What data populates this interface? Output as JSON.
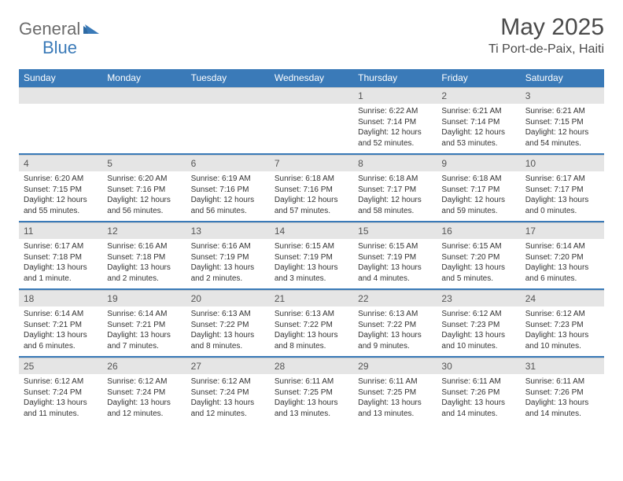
{
  "logo": {
    "text1": "General",
    "text2": "Blue"
  },
  "title": "May 2025",
  "location": "Ti Port-de-Paix, Haiti",
  "colors": {
    "header_bg": "#3a7ab8",
    "date_bg": "#e5e5e5",
    "rule": "#3a7ab8",
    "logo_gray": "#6b6b6b",
    "logo_blue": "#3a7ab8"
  },
  "dayNames": [
    "Sunday",
    "Monday",
    "Tuesday",
    "Wednesday",
    "Thursday",
    "Friday",
    "Saturday"
  ],
  "weeks": [
    {
      "dates": [
        "",
        "",
        "",
        "",
        "1",
        "2",
        "3"
      ],
      "cells": [
        null,
        null,
        null,
        null,
        {
          "sunrise": "Sunrise: 6:22 AM",
          "sunset": "Sunset: 7:14 PM",
          "daylight": "Daylight: 12 hours and 52 minutes."
        },
        {
          "sunrise": "Sunrise: 6:21 AM",
          "sunset": "Sunset: 7:14 PM",
          "daylight": "Daylight: 12 hours and 53 minutes."
        },
        {
          "sunrise": "Sunrise: 6:21 AM",
          "sunset": "Sunset: 7:15 PM",
          "daylight": "Daylight: 12 hours and 54 minutes."
        }
      ]
    },
    {
      "dates": [
        "4",
        "5",
        "6",
        "7",
        "8",
        "9",
        "10"
      ],
      "cells": [
        {
          "sunrise": "Sunrise: 6:20 AM",
          "sunset": "Sunset: 7:15 PM",
          "daylight": "Daylight: 12 hours and 55 minutes."
        },
        {
          "sunrise": "Sunrise: 6:20 AM",
          "sunset": "Sunset: 7:16 PM",
          "daylight": "Daylight: 12 hours and 56 minutes."
        },
        {
          "sunrise": "Sunrise: 6:19 AM",
          "sunset": "Sunset: 7:16 PM",
          "daylight": "Daylight: 12 hours and 56 minutes."
        },
        {
          "sunrise": "Sunrise: 6:18 AM",
          "sunset": "Sunset: 7:16 PM",
          "daylight": "Daylight: 12 hours and 57 minutes."
        },
        {
          "sunrise": "Sunrise: 6:18 AM",
          "sunset": "Sunset: 7:17 PM",
          "daylight": "Daylight: 12 hours and 58 minutes."
        },
        {
          "sunrise": "Sunrise: 6:18 AM",
          "sunset": "Sunset: 7:17 PM",
          "daylight": "Daylight: 12 hours and 59 minutes."
        },
        {
          "sunrise": "Sunrise: 6:17 AM",
          "sunset": "Sunset: 7:17 PM",
          "daylight": "Daylight: 13 hours and 0 minutes."
        }
      ]
    },
    {
      "dates": [
        "11",
        "12",
        "13",
        "14",
        "15",
        "16",
        "17"
      ],
      "cells": [
        {
          "sunrise": "Sunrise: 6:17 AM",
          "sunset": "Sunset: 7:18 PM",
          "daylight": "Daylight: 13 hours and 1 minute."
        },
        {
          "sunrise": "Sunrise: 6:16 AM",
          "sunset": "Sunset: 7:18 PM",
          "daylight": "Daylight: 13 hours and 2 minutes."
        },
        {
          "sunrise": "Sunrise: 6:16 AM",
          "sunset": "Sunset: 7:19 PM",
          "daylight": "Daylight: 13 hours and 2 minutes."
        },
        {
          "sunrise": "Sunrise: 6:15 AM",
          "sunset": "Sunset: 7:19 PM",
          "daylight": "Daylight: 13 hours and 3 minutes."
        },
        {
          "sunrise": "Sunrise: 6:15 AM",
          "sunset": "Sunset: 7:19 PM",
          "daylight": "Daylight: 13 hours and 4 minutes."
        },
        {
          "sunrise": "Sunrise: 6:15 AM",
          "sunset": "Sunset: 7:20 PM",
          "daylight": "Daylight: 13 hours and 5 minutes."
        },
        {
          "sunrise": "Sunrise: 6:14 AM",
          "sunset": "Sunset: 7:20 PM",
          "daylight": "Daylight: 13 hours and 6 minutes."
        }
      ]
    },
    {
      "dates": [
        "18",
        "19",
        "20",
        "21",
        "22",
        "23",
        "24"
      ],
      "cells": [
        {
          "sunrise": "Sunrise: 6:14 AM",
          "sunset": "Sunset: 7:21 PM",
          "daylight": "Daylight: 13 hours and 6 minutes."
        },
        {
          "sunrise": "Sunrise: 6:14 AM",
          "sunset": "Sunset: 7:21 PM",
          "daylight": "Daylight: 13 hours and 7 minutes."
        },
        {
          "sunrise": "Sunrise: 6:13 AM",
          "sunset": "Sunset: 7:22 PM",
          "daylight": "Daylight: 13 hours and 8 minutes."
        },
        {
          "sunrise": "Sunrise: 6:13 AM",
          "sunset": "Sunset: 7:22 PM",
          "daylight": "Daylight: 13 hours and 8 minutes."
        },
        {
          "sunrise": "Sunrise: 6:13 AM",
          "sunset": "Sunset: 7:22 PM",
          "daylight": "Daylight: 13 hours and 9 minutes."
        },
        {
          "sunrise": "Sunrise: 6:12 AM",
          "sunset": "Sunset: 7:23 PM",
          "daylight": "Daylight: 13 hours and 10 minutes."
        },
        {
          "sunrise": "Sunrise: 6:12 AM",
          "sunset": "Sunset: 7:23 PM",
          "daylight": "Daylight: 13 hours and 10 minutes."
        }
      ]
    },
    {
      "dates": [
        "25",
        "26",
        "27",
        "28",
        "29",
        "30",
        "31"
      ],
      "cells": [
        {
          "sunrise": "Sunrise: 6:12 AM",
          "sunset": "Sunset: 7:24 PM",
          "daylight": "Daylight: 13 hours and 11 minutes."
        },
        {
          "sunrise": "Sunrise: 6:12 AM",
          "sunset": "Sunset: 7:24 PM",
          "daylight": "Daylight: 13 hours and 12 minutes."
        },
        {
          "sunrise": "Sunrise: 6:12 AM",
          "sunset": "Sunset: 7:24 PM",
          "daylight": "Daylight: 13 hours and 12 minutes."
        },
        {
          "sunrise": "Sunrise: 6:11 AM",
          "sunset": "Sunset: 7:25 PM",
          "daylight": "Daylight: 13 hours and 13 minutes."
        },
        {
          "sunrise": "Sunrise: 6:11 AM",
          "sunset": "Sunset: 7:25 PM",
          "daylight": "Daylight: 13 hours and 13 minutes."
        },
        {
          "sunrise": "Sunrise: 6:11 AM",
          "sunset": "Sunset: 7:26 PM",
          "daylight": "Daylight: 13 hours and 14 minutes."
        },
        {
          "sunrise": "Sunrise: 6:11 AM",
          "sunset": "Sunset: 7:26 PM",
          "daylight": "Daylight: 13 hours and 14 minutes."
        }
      ]
    }
  ]
}
